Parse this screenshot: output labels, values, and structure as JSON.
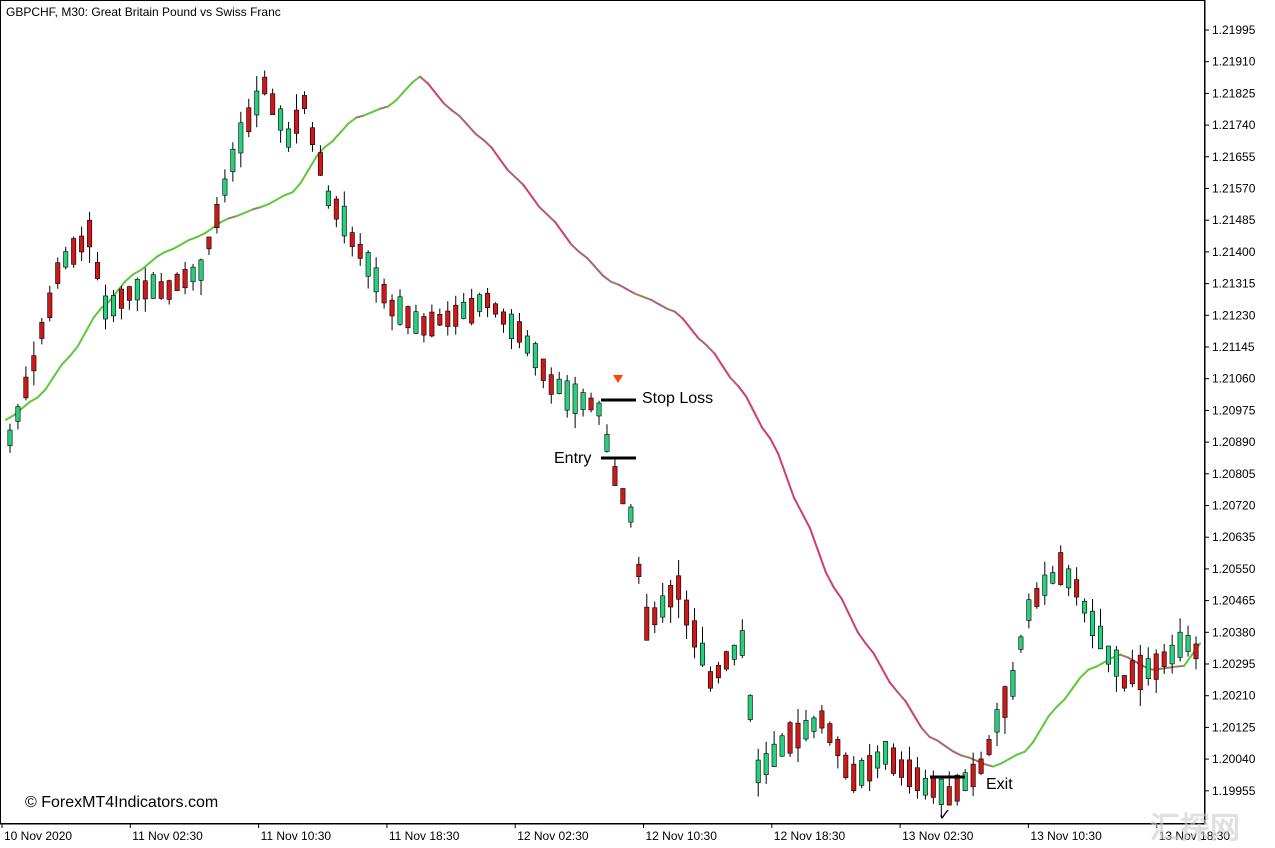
{
  "chart_data": {
    "type": "candlestick",
    "title": "GBPCHF, M30:  Great Britain Pound vs Swiss Franc",
    "ylim": [
      1.1968,
      1.2207
    ],
    "y_ticks": [
      "1.21995",
      "1.21910",
      "1.21825",
      "1.21740",
      "1.21655",
      "1.21570",
      "1.21485",
      "1.21400",
      "1.21315",
      "1.21230",
      "1.21145",
      "1.21060",
      "1.20975",
      "1.20890",
      "1.20805",
      "1.20720",
      "1.20635",
      "1.20550",
      "1.20465",
      "1.20380",
      "1.20295",
      "1.20210",
      "1.20125",
      "1.20040",
      "1.19955"
    ],
    "x_ticks": [
      "10 Nov 2020",
      "11 Nov 02:30",
      "11 Nov 10:30",
      "11 Nov 18:30",
      "12 Nov 02:30",
      "12 Nov 10:30",
      "12 Nov 18:30",
      "13 Nov 02:30",
      "13 Nov 10:30",
      "13 Nov 18:30"
    ],
    "colors": {
      "bull": "#26d07c",
      "bear": "#d01818",
      "wick": "#000000",
      "ma_up": "#5fc73a",
      "ma_flat": "#9a8060",
      "ma_down": "#d03c78",
      "arrow": "#ff4400"
    },
    "ma_points": [
      [
        0,
        1.2095
      ],
      [
        4,
        1.2101
      ],
      [
        8,
        1.2112
      ],
      [
        12,
        1.2125
      ],
      [
        16,
        1.2134
      ],
      [
        20,
        1.214
      ],
      [
        24,
        1.2144
      ],
      [
        28,
        1.2149
      ],
      [
        32,
        1.2152
      ],
      [
        36,
        1.2156
      ],
      [
        40,
        1.2168
      ],
      [
        44,
        1.2176
      ],
      [
        48,
        1.2179
      ],
      [
        52,
        1.2187
      ],
      [
        56,
        1.2178
      ],
      [
        60,
        1.217
      ],
      [
        64,
        1.216
      ],
      [
        68,
        1.215
      ],
      [
        72,
        1.214
      ],
      [
        76,
        1.2132
      ],
      [
        80,
        1.2128
      ],
      [
        84,
        1.2124
      ],
      [
        88,
        1.2115
      ],
      [
        92,
        1.2104
      ],
      [
        96,
        1.209
      ],
      [
        100,
        1.207
      ],
      [
        104,
        1.205
      ],
      [
        108,
        1.2035
      ],
      [
        112,
        1.2022
      ],
      [
        116,
        1.201
      ],
      [
        120,
        1.2005
      ],
      [
        124,
        1.2002
      ],
      [
        128,
        1.2006
      ],
      [
        132,
        1.2018
      ],
      [
        136,
        1.2028
      ],
      [
        140,
        1.2032
      ],
      [
        144,
        1.2028
      ],
      [
        148,
        1.2029
      ],
      [
        150,
        1.2035
      ]
    ]
  },
  "annotations": {
    "stop_loss": "Stop Loss",
    "entry": "Entry",
    "exit": "Exit",
    "check": "✓",
    "stop_loss_price": 1.21,
    "entry_price": 1.20845,
    "exit_price": 1.2002
  },
  "copyright": "© ForexMT4Indicators.com",
  "watermark": "汇探网"
}
